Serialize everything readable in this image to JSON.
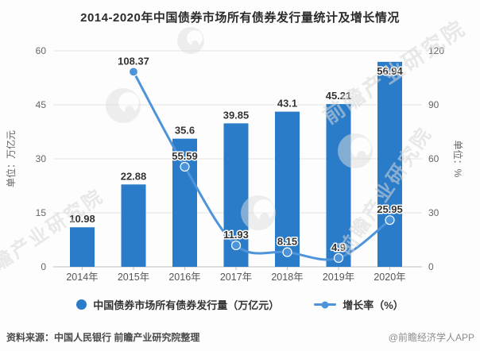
{
  "title": "2014-2020年中国债券市场所有债券发行量统计及增长情况",
  "chart_data": {
    "type": "bar+line",
    "categories": [
      "2014年",
      "2015年",
      "2016年",
      "2017年",
      "2018年",
      "2019年",
      "2020年"
    ],
    "series": [
      {
        "name": "中国债券市场所有债券发行量（万亿元）",
        "type": "bar",
        "axis": "left",
        "values": [
          10.98,
          22.88,
          35.6,
          39.85,
          43.1,
          45.21,
          56.94
        ]
      },
      {
        "name": "增长率（%）",
        "type": "line",
        "axis": "right",
        "values": [
          null,
          108.37,
          55.59,
          11.93,
          8.15,
          4.9,
          25.95
        ]
      }
    ],
    "left_axis": {
      "label": "单位：万亿元",
      "min": 0,
      "max": 60,
      "ticks": [
        0,
        15,
        30,
        45,
        60
      ]
    },
    "right_axis": {
      "label": "单位：%",
      "min": 0,
      "max": 120,
      "ticks": [
        0,
        30,
        60,
        90,
        120
      ]
    },
    "grid": true,
    "legend_position": "bottom"
  },
  "legend": {
    "bar_label": "中国债券市场所有债券发行量（万亿元）",
    "line_label": "增长率（%）"
  },
  "footer": {
    "source": "资料来源：中国人民银行 前瞻产业研究院整理",
    "brand": "@前瞻经济学人APP"
  },
  "watermark": {
    "text": "前瞻产业研究院"
  },
  "colors": {
    "bar": "#2A7CC9",
    "line": "#4D94DB",
    "value_label": "#333333",
    "axis_text": "#666666",
    "grid": "#E3E3E3",
    "axis_line": "#BFBFBF",
    "title": "#2B2B2B"
  }
}
